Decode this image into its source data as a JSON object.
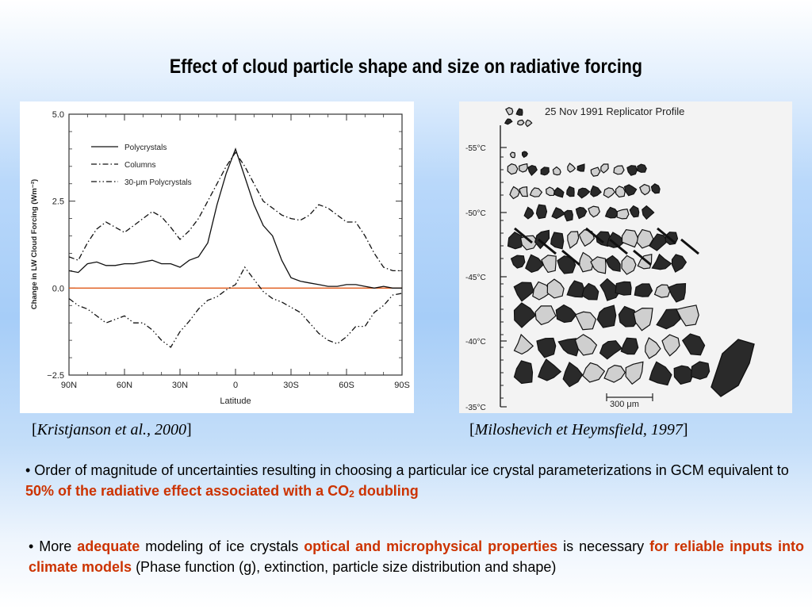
{
  "slide": {
    "title": "Effect of cloud particle shape and size on radiative forcing"
  },
  "left_figure": {
    "citation": "Kristjanson et al., 2000",
    "chart_data": {
      "type": "line",
      "ylabel": "Change in LW Cloud Forcing (Wm⁻²)",
      "xlabel": "Latitude",
      "x_ticks": [
        "90N",
        "60N",
        "30N",
        "0",
        "30S",
        "60S",
        "90S"
      ],
      "y_ticks": [
        "5.0",
        "2.5",
        "0.0",
        "−2.5"
      ],
      "xlim": [
        90,
        -90
      ],
      "ylim": [
        -2.5,
        5.0
      ],
      "legend_placement": "top-left",
      "x": [
        90,
        85,
        80,
        75,
        70,
        65,
        60,
        55,
        50,
        45,
        40,
        35,
        30,
        25,
        20,
        15,
        10,
        5,
        0,
        -5,
        -10,
        -15,
        -20,
        -25,
        -30,
        -35,
        -40,
        -45,
        -50,
        -55,
        -60,
        -65,
        -70,
        -75,
        -80,
        -85,
        -90
      ],
      "series": [
        {
          "name": "Polycrystals",
          "style": "solid",
          "values": [
            0.5,
            0.45,
            0.7,
            0.75,
            0.65,
            0.65,
            0.7,
            0.7,
            0.75,
            0.8,
            0.7,
            0.7,
            0.6,
            0.8,
            0.9,
            1.3,
            2.4,
            3.3,
            4.0,
            3.2,
            2.4,
            1.8,
            1.5,
            0.8,
            0.3,
            0.2,
            0.15,
            0.1,
            0.05,
            0.05,
            0.1,
            0.1,
            0.05,
            0.0,
            0.05,
            0.0,
            0.0
          ]
        },
        {
          "name": "Columns",
          "style": "dash-dot",
          "values": [
            0.9,
            0.8,
            1.3,
            1.7,
            1.9,
            1.75,
            1.6,
            1.8,
            2.0,
            2.2,
            2.05,
            1.75,
            1.4,
            1.65,
            2.0,
            2.5,
            3.0,
            3.5,
            3.9,
            3.5,
            3.0,
            2.5,
            2.3,
            2.1,
            2.0,
            1.95,
            2.1,
            2.4,
            2.3,
            2.1,
            1.9,
            1.9,
            1.5,
            1.0,
            0.6,
            0.5,
            0.5
          ]
        },
        {
          "name": "30-μm Polycrystals",
          "style": "dash-dot-dot",
          "values": [
            -0.3,
            -0.5,
            -0.6,
            -0.8,
            -1.0,
            -0.9,
            -0.8,
            -1.0,
            -1.0,
            -1.2,
            -1.5,
            -1.7,
            -1.25,
            -0.95,
            -0.6,
            -0.35,
            -0.25,
            -0.05,
            0.1,
            0.6,
            0.25,
            -0.1,
            -0.3,
            -0.4,
            -0.55,
            -0.7,
            -1.0,
            -1.3,
            -1.5,
            -1.6,
            -1.4,
            -1.1,
            -1.1,
            -0.7,
            -0.5,
            -0.2,
            -0.15
          ]
        }
      ],
      "reference_line": {
        "value": 0.0,
        "color": "#e05a1a"
      }
    }
  },
  "right_figure": {
    "citation": "Miloshevich et Heymsfield, 1997",
    "header": "25 Nov 1991 Replicator Profile",
    "temperature_labels": [
      "-55°C",
      "-50°C",
      "-45°C",
      "-40°C",
      "-35°C"
    ],
    "scale_bar_label": "300 μm"
  },
  "bullets": {
    "b1": {
      "prefix": "• Order of magnitude of uncertainties resulting in choosing a particular ice crystal parameterizations in GCM equivalent to ",
      "highlight1": "50% of the radiative effect  associated  with a CO",
      "sub": "2",
      "highlight2": " doubling"
    },
    "b2": {
      "bullet": "• More ",
      "h1": "adequate",
      "t1": " modeling of ice crystals ",
      "h2": "optical and microphysical properties",
      "t2": " is necessary ",
      "h3": "for reliable inputs into climate models",
      "t3": "  (Phase function (g), extinction, particle size distribution and shape)"
    }
  },
  "colors": {
    "highlight": "#cc3300",
    "zero_line": "#e05a1a"
  }
}
